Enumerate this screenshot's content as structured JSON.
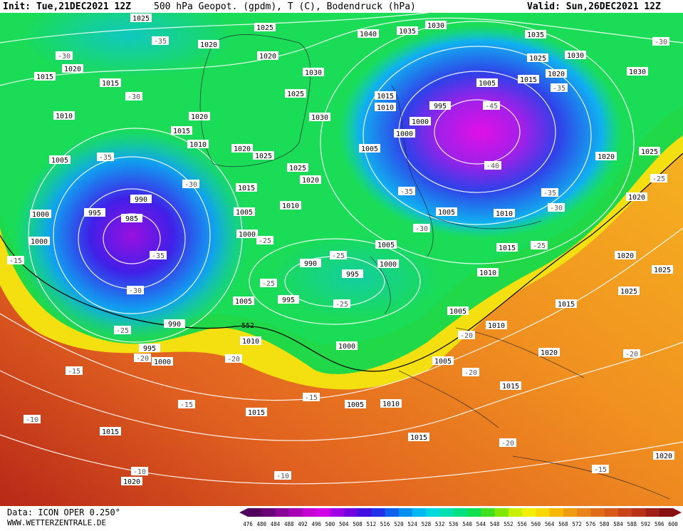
{
  "header": {
    "init": "Init: Tue,21DEC2021 12Z",
    "title": "500 hPa Geopot. (gpdm), T (C), Bodendruck (hPa)",
    "valid": "Valid: Sun,26DEC2021 12Z"
  },
  "footer": {
    "data": "Data: ICON OPER 0.250°",
    "site": "WWW.WETTERZENTRALE.DE"
  },
  "map": {
    "isobar_labels": [
      "1025",
      "1025",
      "1030",
      "1035",
      "1040",
      "1035",
      "1030",
      "1030",
      "1020",
      "1020",
      "1020",
      "1015",
      "1015",
      "1010",
      "1015",
      "1010",
      "1020",
      "1030",
      "1025",
      "1030",
      "1020",
      "1025",
      "1025",
      "1020",
      "1015",
      "1010",
      "1005",
      "1000",
      "1005",
      "1000",
      "1000",
      "995",
      "990",
      "985",
      "990",
      "995",
      "1000",
      "1005",
      "995",
      "1005",
      "990",
      "995",
      "1000",
      "1010",
      "1000",
      "1005",
      "1010",
      "1015",
      "1015",
      "1015",
      "1020",
      "1015",
      "1020",
      "1005",
      "1010",
      "1005",
      "1010",
      "1015",
      "1005",
      "1010",
      "1000",
      "995",
      "1000",
      "1005",
      "1010",
      "1015",
      "1005",
      "1015",
      "1020",
      "1025",
      "1020",
      "1020",
      "1025",
      "1020",
      "1025",
      "1025",
      "1015",
      "1020"
    ],
    "isotherm_labels": [
      "-30",
      "-35",
      "-30",
      "-35",
      "-30",
      "-35",
      "-30",
      "-25",
      "-20",
      "-15",
      "-10",
      "-15",
      "-20",
      "-15",
      "-25",
      "-25",
      "-25",
      "-25",
      "-30",
      "-35",
      "-45",
      "-40",
      "-35",
      "-30",
      "-25",
      "-20",
      "-20",
      "-20",
      "-15",
      "-20",
      "-10",
      "-10",
      "-35",
      "-30",
      "-25",
      "-15"
    ],
    "contour_label": "552"
  },
  "colorbar": {
    "labels": [
      "476",
      "480",
      "484",
      "488",
      "492",
      "496",
      "500",
      "504",
      "508",
      "512",
      "516",
      "520",
      "524",
      "528",
      "532",
      "536",
      "540",
      "544",
      "548",
      "552",
      "556",
      "560",
      "564",
      "568",
      "572",
      "576",
      "580",
      "584",
      "588",
      "592",
      "596",
      "600"
    ],
    "colors": [
      "#50005a",
      "#6a0078",
      "#880096",
      "#a600b4",
      "#c400d2",
      "#d200e6",
      "#a000e6",
      "#7000e0",
      "#4010e0",
      "#2030e8",
      "#1060f0",
      "#0090f0",
      "#00b8f0",
      "#00d8e0",
      "#00e0b0",
      "#00e080",
      "#10e050",
      "#40e020",
      "#80e800",
      "#c8f000",
      "#f0f000",
      "#f8d800",
      "#f8b800",
      "#f09c10",
      "#e88418",
      "#e06c18",
      "#d85818",
      "#c84418",
      "#b83018",
      "#a02018",
      "#881010"
    ]
  }
}
